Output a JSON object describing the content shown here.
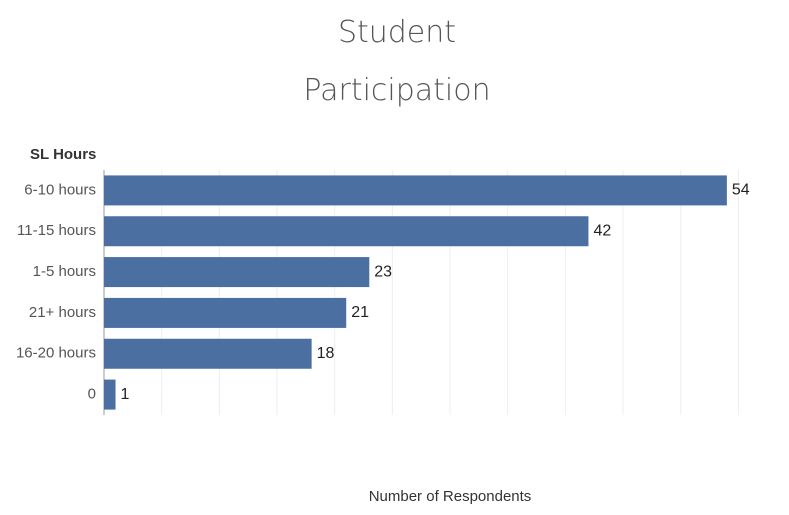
{
  "chart_data": {
    "type": "bar",
    "orientation": "horizontal",
    "title": "Student Participation",
    "y_label": "SL Hours",
    "x_label": "Number of Respondents",
    "categories": [
      "6-10 hours",
      "11-15 hours",
      "1-5 hours",
      "21+ hours",
      "16-20 hours",
      "0"
    ],
    "values": [
      54,
      42,
      23,
      21,
      18,
      1
    ],
    "color": "#4a6fa0",
    "xlim": [
      0,
      58
    ],
    "xticks": [
      0,
      5,
      10,
      15,
      20,
      25,
      30,
      35,
      40,
      45,
      50,
      55
    ],
    "grid": true
  }
}
